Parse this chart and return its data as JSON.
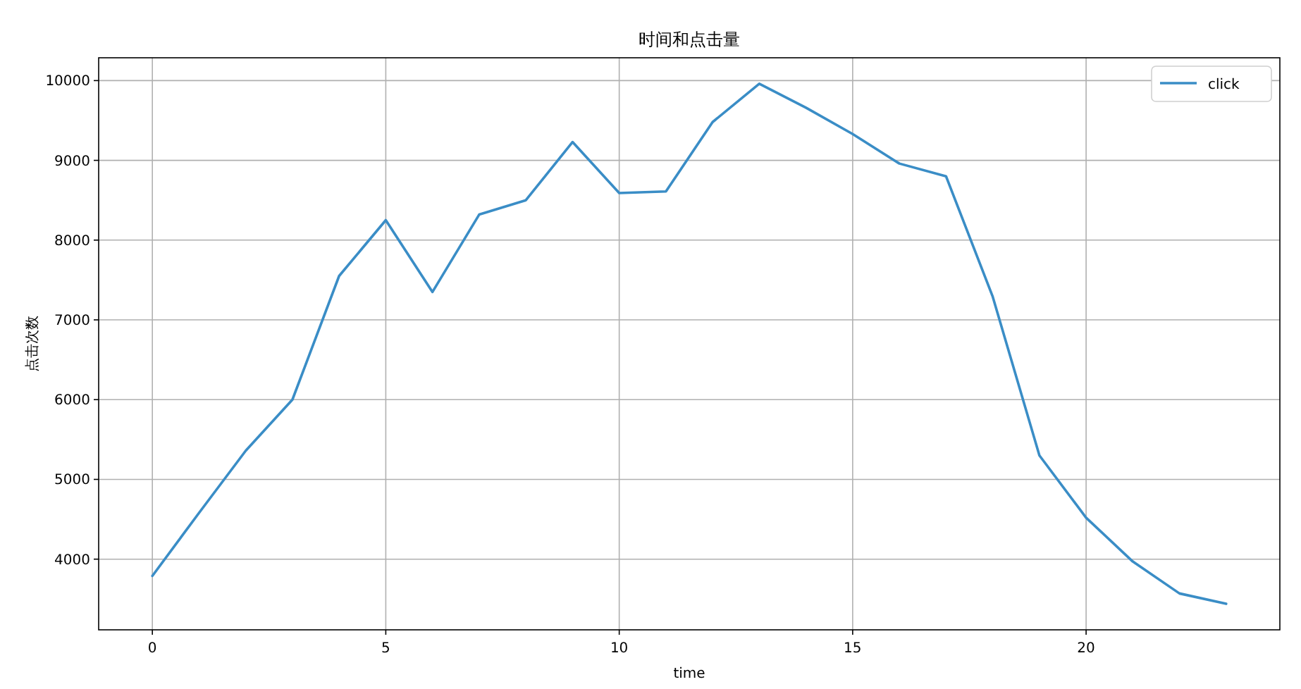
{
  "chart_data": {
    "type": "line",
    "title": "时间和点击量",
    "xlabel": "time",
    "ylabel": "点击次数",
    "x": [
      0,
      1,
      2,
      3,
      4,
      5,
      6,
      7,
      8,
      9,
      10,
      11,
      12,
      13,
      14,
      15,
      16,
      17,
      18,
      19,
      20,
      21,
      22,
      23
    ],
    "series": [
      {
        "name": "click",
        "color": "#3a8dc6",
        "values": [
          3790,
          4580,
          5360,
          6000,
          7550,
          8250,
          7350,
          8320,
          8500,
          9230,
          8590,
          8610,
          9480,
          9960,
          9660,
          9330,
          8960,
          8800,
          7290,
          5300,
          4520,
          3970,
          3570,
          3440
        ]
      }
    ],
    "xlim": [
      -1.15,
      24.15
    ],
    "xticks": [
      0,
      5,
      10,
      15,
      20
    ],
    "ylim": [
      3114,
      10286
    ],
    "yticks": [
      4000,
      5000,
      6000,
      7000,
      8000,
      9000,
      10000
    ],
    "grid": true,
    "legend": "top right",
    "marker": "none",
    "line_style": "solid"
  }
}
